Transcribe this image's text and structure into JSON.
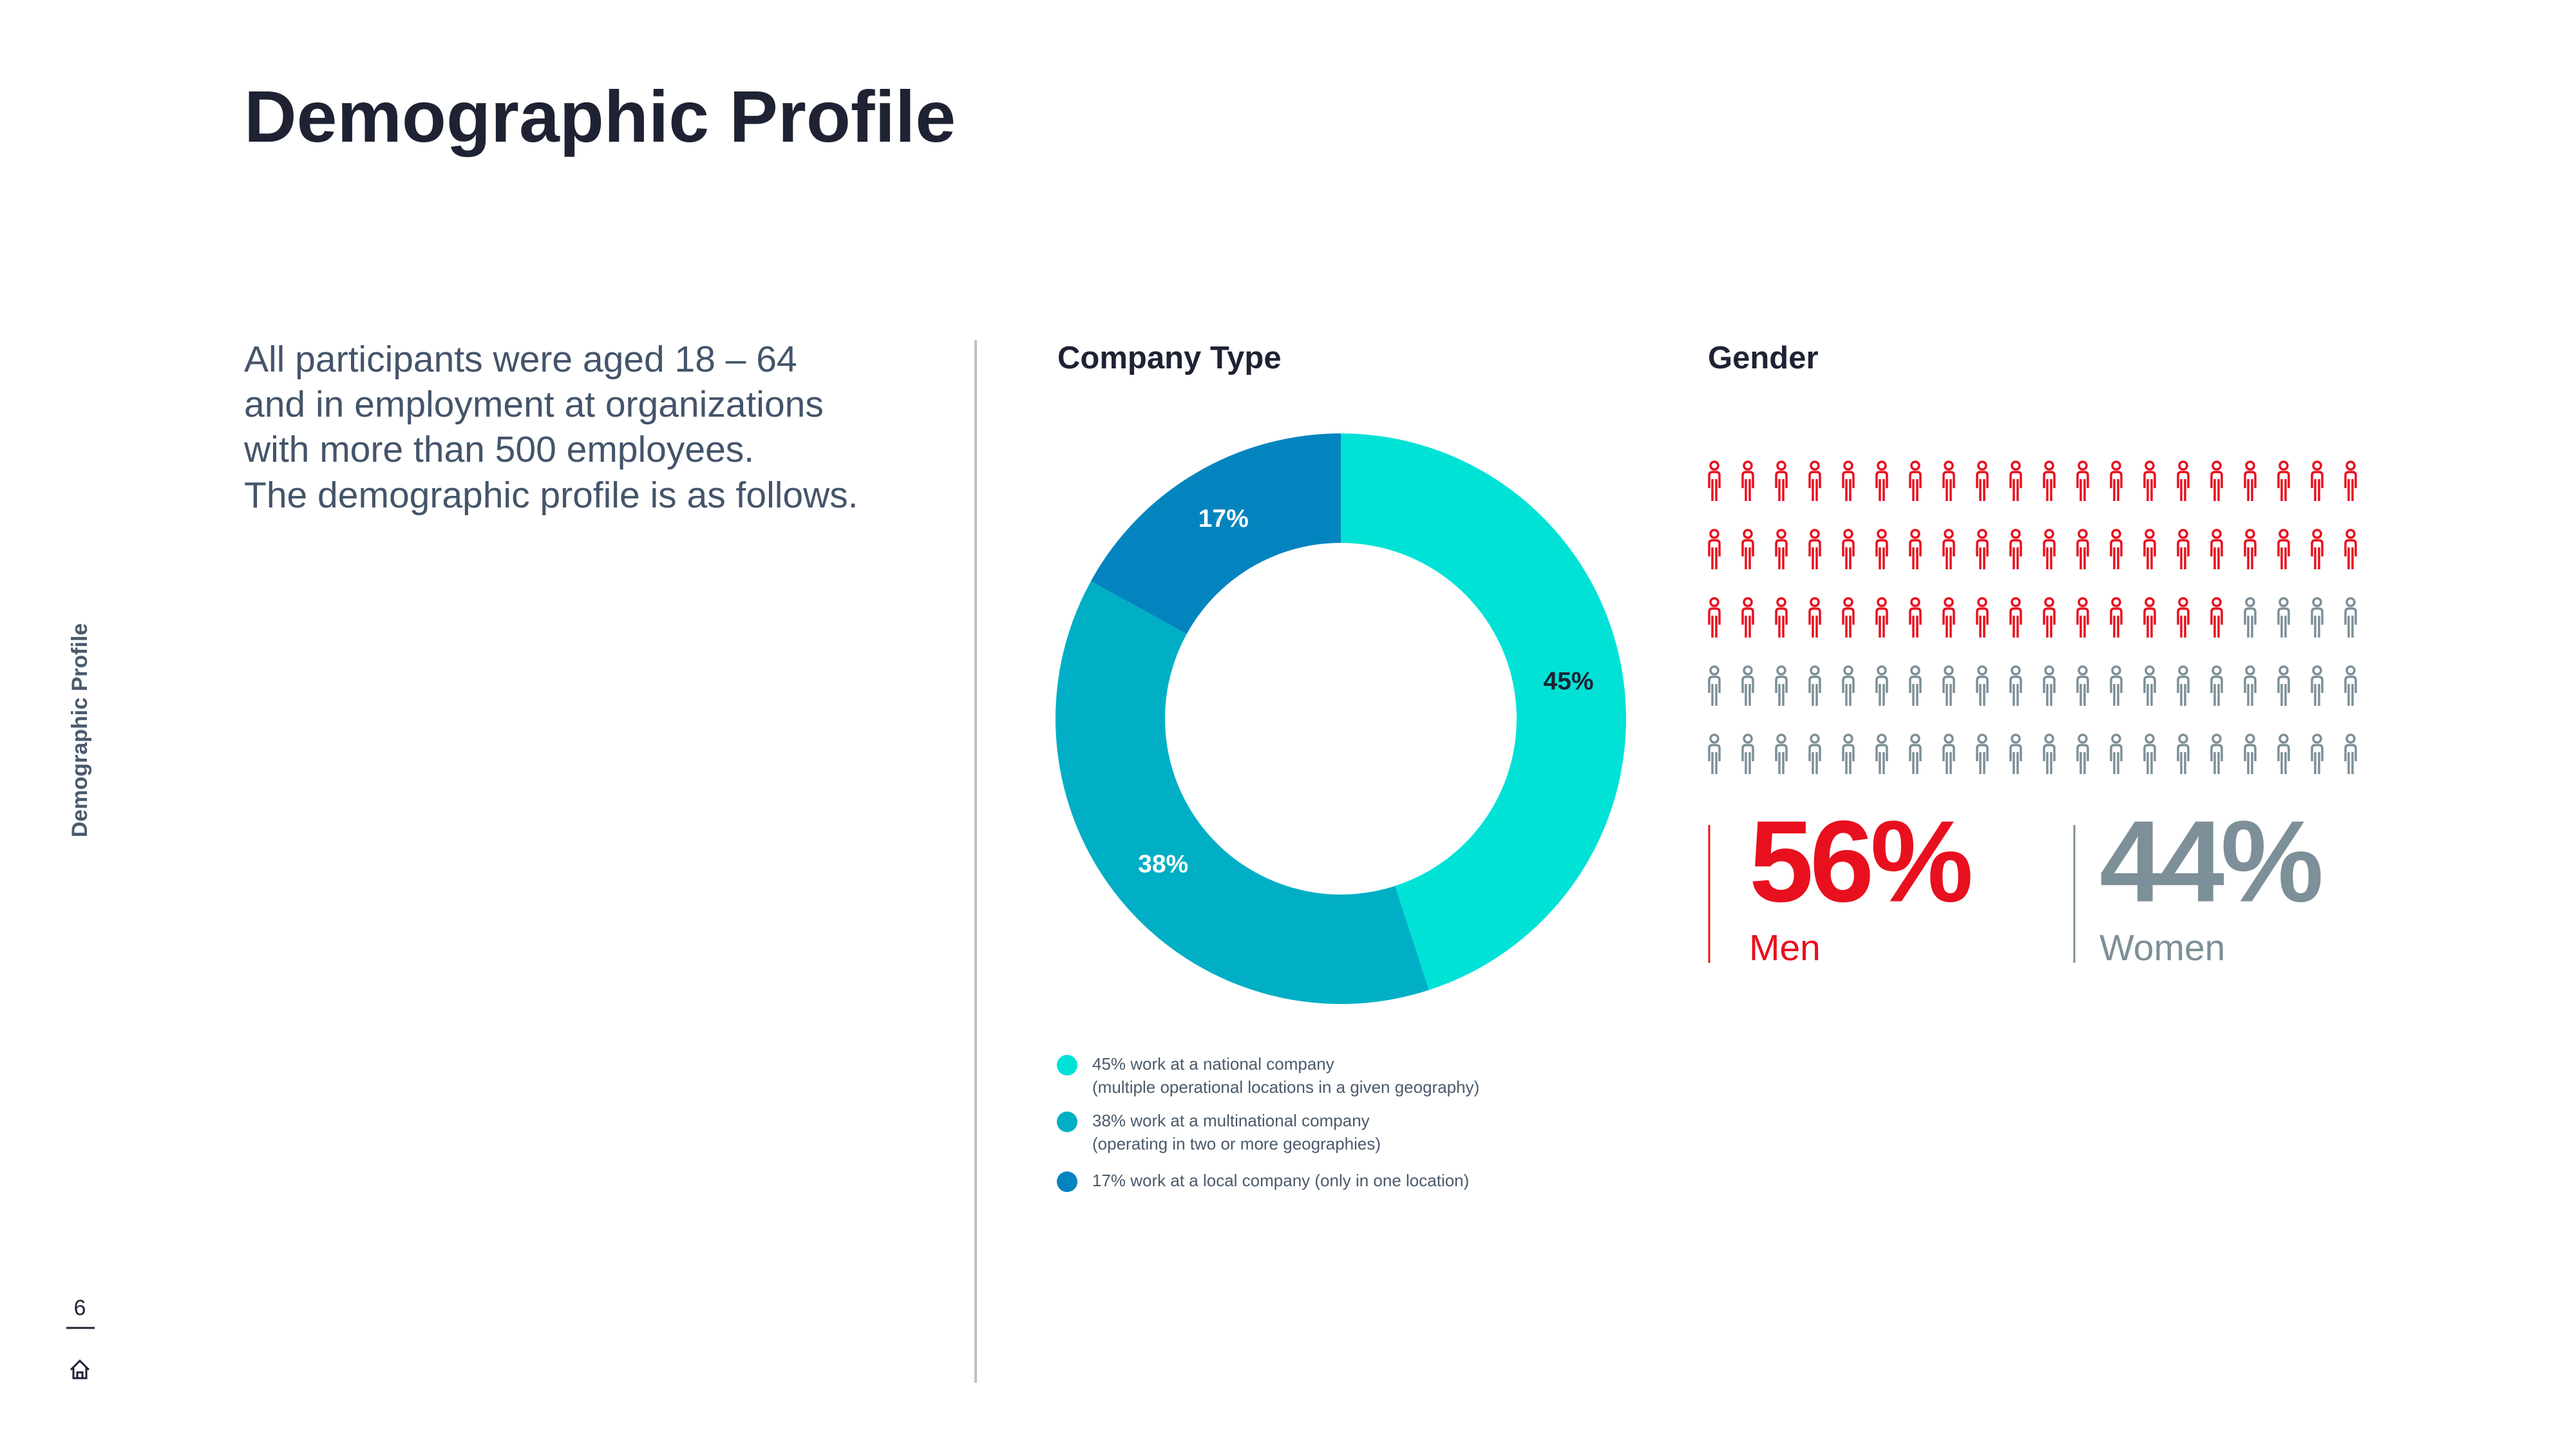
{
  "title": "Demographic Profile",
  "intro": [
    "All participants were aged 18 – 64",
    "and in employment at organizations",
    "with more than 500 employees.",
    "The demographic profile is as follows."
  ],
  "side_label": "Demographic Profile",
  "page_number": "6",
  "chart_data": [
    {
      "type": "donut",
      "title": "Company Type",
      "values": [
        45,
        38,
        17
      ],
      "value_labels": [
        "45%",
        "38%",
        "17%"
      ],
      "colors": [
        "#00e2d6",
        "#00afc5",
        "#0484bf"
      ],
      "legend": [
        [
          "45% work at a national company",
          "(multiple operational locations in a given geography)"
        ],
        [
          "38% work at a multinational company",
          "(operating in two or more geographies)"
        ],
        [
          "17% work at a local company (only in one location)"
        ]
      ]
    },
    {
      "type": "pictogram",
      "title": "Gender",
      "columns": 20,
      "series": [
        {
          "name": "Men",
          "color": "#e8101e",
          "value": 56,
          "value_label": "56%"
        },
        {
          "name": "Women",
          "color": "#7d8f98",
          "value": 44,
          "value_label": "44%"
        }
      ]
    }
  ]
}
